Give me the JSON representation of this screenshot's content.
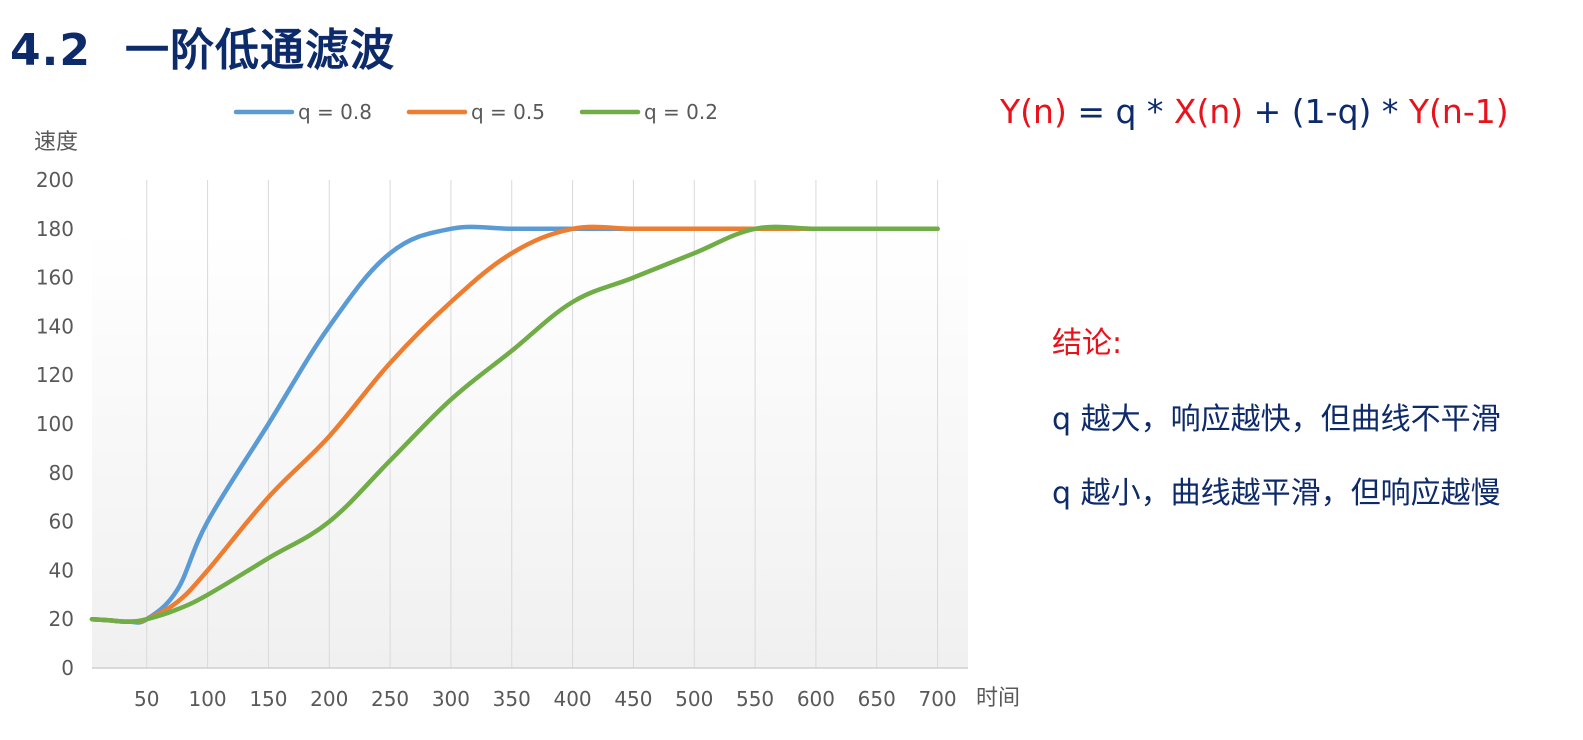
{
  "slide": {
    "section": "4.2",
    "title": "一阶低通滤波"
  },
  "formula": {
    "y_n": "Y(n)",
    "eq_q": " = q * ",
    "x_n": "X(n)",
    "mid": " + (1-q) * ",
    "y_prev": "Y(n-1)"
  },
  "conclusion": {
    "heading": "结论:",
    "lines": [
      "q 越大，响应越快，但曲线不平滑",
      "q 越小，曲线越平滑，但响应越慢"
    ]
  },
  "chart_data": {
    "type": "line",
    "ylabel": "速度",
    "xlabel": "时间",
    "x_ticks": [
      50,
      100,
      150,
      200,
      250,
      300,
      350,
      400,
      450,
      500,
      550,
      600,
      650,
      700
    ],
    "y_ticks": [
      0,
      20,
      40,
      60,
      80,
      100,
      120,
      140,
      160,
      180,
      200
    ],
    "xlim": [
      5,
      725
    ],
    "ylim": [
      0,
      200
    ],
    "grid": "vertical",
    "legend_position": "top",
    "x": [
      5,
      20,
      35,
      50,
      75,
      100,
      150,
      200,
      250,
      300,
      350,
      400,
      450,
      500,
      550,
      600,
      650,
      700
    ],
    "series": [
      {
        "name": "q = 0.8",
        "color": "#5b9bd5",
        "values": [
          20,
          19.5,
          19,
          20,
          32,
          60,
          100,
          140,
          170,
          180,
          180,
          180,
          180,
          180,
          180,
          180,
          180,
          180
        ]
      },
      {
        "name": "q = 0.5",
        "color": "#ed7d31",
        "values": [
          20,
          19.5,
          19,
          20,
          27,
          40,
          70,
          95,
          125,
          150,
          170,
          180,
          180,
          180,
          180,
          180,
          180,
          180
        ]
      },
      {
        "name": "q = 0.2",
        "color": "#70ad47",
        "values": [
          20,
          19.5,
          19,
          20,
          24,
          30,
          45,
          60,
          85,
          110,
          130,
          150,
          160,
          170,
          180,
          180,
          180,
          180
        ]
      }
    ]
  }
}
